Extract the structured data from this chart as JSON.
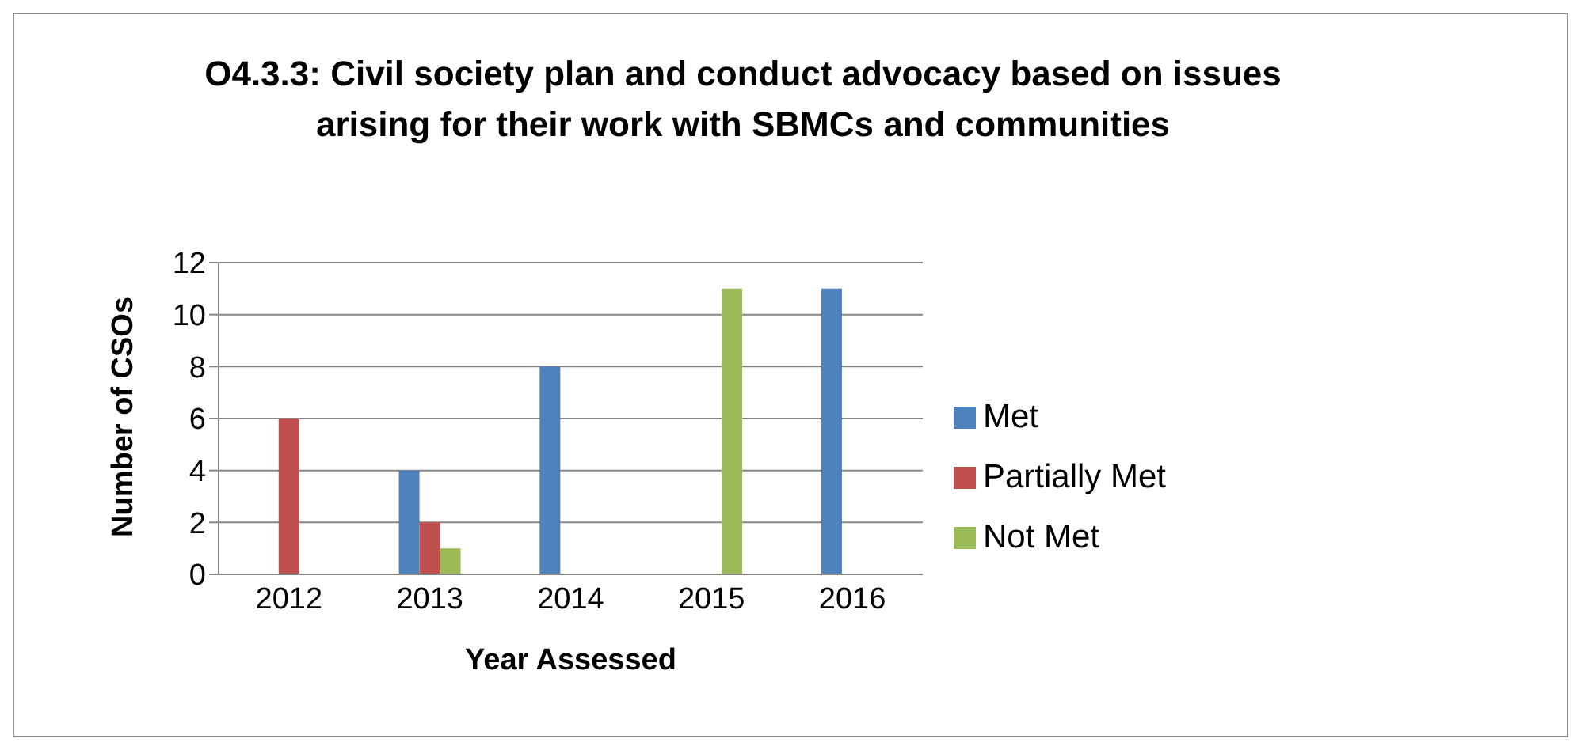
{
  "chart_data": {
    "type": "bar",
    "title": "O4.3.3:  Civil society plan and conduct advocacy based on issues arising for their work with SBMCs and communities",
    "xlabel": "Year Assessed",
    "ylabel": "Number of CSOs",
    "categories": [
      "2012",
      "2013",
      "2014",
      "2015",
      "2016"
    ],
    "series": [
      {
        "name": "Met",
        "color": "#4f81bd",
        "values": [
          0,
          4,
          8,
          0,
          11
        ]
      },
      {
        "name": "Partially Met",
        "color": "#c0504d",
        "values": [
          6,
          2,
          0,
          0,
          0
        ]
      },
      {
        "name": "Not Met",
        "color": "#9bbb59",
        "values": [
          0,
          1,
          0,
          11,
          0
        ]
      }
    ],
    "ylim": [
      0,
      12
    ],
    "yticks": [
      0,
      2,
      4,
      6,
      8,
      10,
      12
    ],
    "grid": "y",
    "legend": "right"
  }
}
